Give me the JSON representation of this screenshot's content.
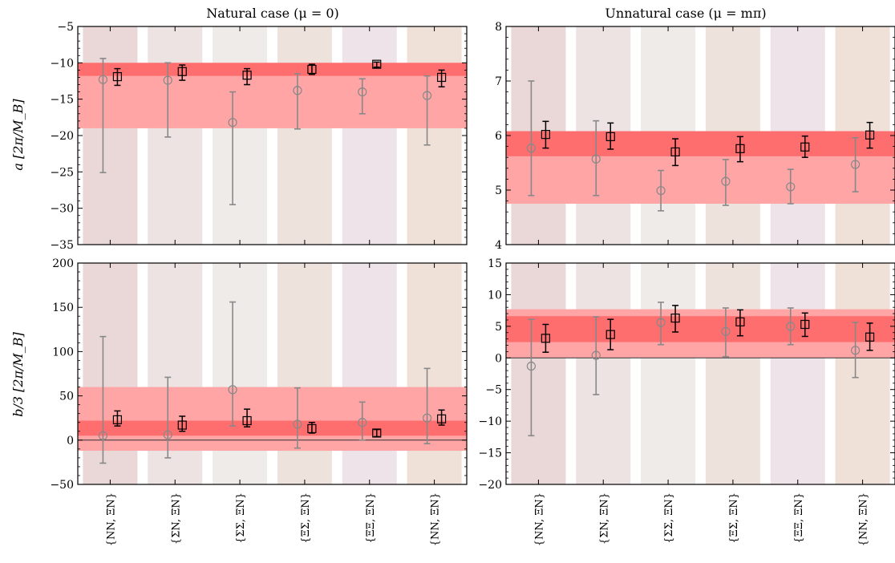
{
  "colors": {
    "band_outer": "#ffa5a5",
    "band_inner": "#ff6e6e",
    "bg_columns": [
      "#ead8d8",
      "#ede3e3",
      "#efebe8",
      "#eee3dc",
      "#eee3e8",
      "#efe0d8"
    ],
    "circle_series": "#888888",
    "square_series": "#000000"
  },
  "titles": {
    "left": "Natural case (μ = 0)",
    "right": "Unnatural case (μ = mπ)"
  },
  "ylabels": {
    "top": "a [2π/M_B]",
    "bottom": "b/3 [2π/M_B]"
  },
  "categories": [
    "{NN, ΞN}",
    "{ΣN, ΞN}",
    "{ΣΣ, ΞN}",
    "{ΞΣ, ΞN}",
    "{ΞΞ, ΞN}",
    "{NN, ΞN}"
  ],
  "chart_data": [
    {
      "type": "scatter",
      "panel": "top-left",
      "ylim": [
        -35,
        -5
      ],
      "yticks": [
        -35,
        -30,
        -25,
        -20,
        -15,
        -10,
        -5
      ],
      "band_outer": [
        -19.0,
        -10.0
      ],
      "band_inner": [
        -11.8,
        -10.0
      ],
      "zero_line": false,
      "series": [
        {
          "marker": "circle",
          "values": [
            -12.3,
            -12.4,
            -18.2,
            -13.8,
            -14.0,
            -14.5
          ],
          "lower": [
            -25.1,
            -20.2,
            -29.5,
            -19.1,
            -17.0,
            -21.3
          ],
          "upper": [
            -9.4,
            -10.0,
            -14.0,
            -11.5,
            -12.2,
            -11.8
          ]
        },
        {
          "marker": "square",
          "values": [
            -11.9,
            -11.2,
            -11.7,
            -10.9,
            -10.2,
            -12.0
          ],
          "lower": [
            -13.1,
            -12.4,
            -13.0,
            -11.6,
            -10.6,
            -13.3
          ],
          "upper": [
            -10.8,
            -10.3,
            -10.8,
            -10.2,
            -9.9,
            -11.0
          ]
        }
      ]
    },
    {
      "type": "scatter",
      "panel": "top-right",
      "ylim": [
        4,
        8
      ],
      "yticks": [
        4,
        5,
        6,
        7,
        8
      ],
      "band_outer": [
        4.75,
        6.08
      ],
      "band_inner": [
        5.62,
        6.08
      ],
      "zero_line": false,
      "series": [
        {
          "marker": "circle",
          "values": [
            5.77,
            5.57,
            4.99,
            5.16,
            5.06,
            5.47
          ],
          "lower": [
            4.9,
            4.9,
            4.62,
            4.72,
            4.75,
            4.97
          ],
          "upper": [
            7.0,
            6.27,
            5.36,
            5.56,
            5.38,
            5.96
          ]
        },
        {
          "marker": "square",
          "values": [
            6.02,
            5.98,
            5.7,
            5.76,
            5.79,
            6.01
          ],
          "lower": [
            5.77,
            5.75,
            5.45,
            5.52,
            5.6,
            5.77
          ],
          "upper": [
            6.26,
            6.23,
            5.94,
            5.98,
            5.99,
            6.24
          ]
        }
      ]
    },
    {
      "type": "scatter",
      "panel": "bottom-left",
      "ylim": [
        -50,
        200
      ],
      "yticks": [
        -50,
        0,
        50,
        100,
        150,
        200
      ],
      "band_outer": [
        -12,
        60
      ],
      "band_inner": [
        5,
        22
      ],
      "zero_line": true,
      "series": [
        {
          "marker": "circle",
          "values": [
            5,
            6,
            57,
            18,
            20,
            25
          ],
          "lower": [
            -26,
            -20,
            16,
            -9,
            0,
            -4
          ],
          "upper": [
            117,
            71,
            156,
            59,
            43,
            81
          ]
        },
        {
          "marker": "square",
          "values": [
            23,
            17,
            22,
            13,
            8,
            24
          ],
          "lower": [
            16,
            10,
            15,
            8,
            4,
            17
          ],
          "upper": [
            33,
            27,
            35,
            20,
            12,
            34
          ]
        }
      ]
    },
    {
      "type": "scatter",
      "panel": "bottom-right",
      "ylim": [
        -20,
        15
      ],
      "yticks": [
        -20,
        -15,
        -10,
        -5,
        0,
        5,
        10,
        15
      ],
      "band_outer": [
        0,
        7.7
      ],
      "band_inner": [
        2.5,
        6.6
      ],
      "zero_line": true,
      "series": [
        {
          "marker": "circle",
          "values": [
            -1.3,
            0.4,
            5.6,
            4.2,
            5.0,
            1.2
          ],
          "lower": [
            -12.3,
            -5.8,
            2.1,
            0.2,
            2.1,
            -3.1
          ],
          "upper": [
            6.1,
            6.5,
            8.8,
            7.9,
            7.9,
            5.6
          ]
        },
        {
          "marker": "square",
          "values": [
            3.1,
            3.7,
            6.3,
            5.7,
            5.3,
            3.3
          ],
          "lower": [
            0.9,
            1.3,
            4.1,
            3.5,
            3.4,
            1.2
          ],
          "upper": [
            5.3,
            6.1,
            8.3,
            7.6,
            7.1,
            5.5
          ]
        }
      ]
    }
  ]
}
